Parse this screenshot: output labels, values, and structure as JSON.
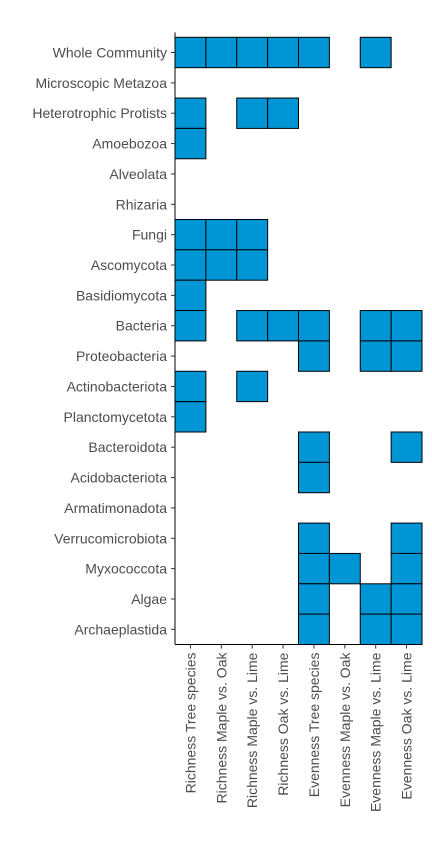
{
  "chart_data": {
    "type": "heatmap",
    "rows": [
      "Whole Community",
      "Microscopic Metazoa",
      "Heterotrophic Protists",
      "Amoebozoa",
      "Alveolata",
      "Rhizaria",
      "Fungi",
      "Ascomycota",
      "Basidiomycota",
      "Bacteria",
      "Proteobacteria",
      "Actinobacteriota",
      "Planctomycetota",
      "Bacteroidota",
      "Acidobacteriota",
      "Armatimonadota",
      "Verrucomicrobiota",
      "Myxococcota",
      "Algae",
      "Archaeplastida"
    ],
    "columns": [
      "Richness Tree species",
      "Richness Maple vs. Oak",
      "Richness Maple vs. Lime",
      "Richness Oak vs. Lime",
      "Evenness Tree species",
      "Evenness Maple vs. Oak",
      "Evenness Maple vs. Lime",
      "Evenness Oak vs. Lime"
    ],
    "cells": [
      [
        1,
        1,
        1,
        1,
        1,
        0,
        1,
        0
      ],
      [
        0,
        0,
        0,
        0,
        0,
        0,
        0,
        0
      ],
      [
        1,
        0,
        1,
        1,
        0,
        0,
        0,
        0
      ],
      [
        1,
        0,
        0,
        0,
        0,
        0,
        0,
        0
      ],
      [
        0,
        0,
        0,
        0,
        0,
        0,
        0,
        0
      ],
      [
        0,
        0,
        0,
        0,
        0,
        0,
        0,
        0
      ],
      [
        1,
        1,
        1,
        0,
        0,
        0,
        0,
        0
      ],
      [
        1,
        1,
        1,
        0,
        0,
        0,
        0,
        0
      ],
      [
        1,
        0,
        0,
        0,
        0,
        0,
        0,
        0
      ],
      [
        1,
        0,
        1,
        1,
        1,
        0,
        1,
        1
      ],
      [
        0,
        0,
        0,
        0,
        1,
        0,
        1,
        1
      ],
      [
        1,
        0,
        1,
        0,
        0,
        0,
        0,
        0
      ],
      [
        1,
        0,
        0,
        0,
        0,
        0,
        0,
        0
      ],
      [
        0,
        0,
        0,
        0,
        1,
        0,
        0,
        1
      ],
      [
        0,
        0,
        0,
        0,
        1,
        0,
        0,
        0
      ],
      [
        0,
        0,
        0,
        0,
        0,
        0,
        0,
        0
      ],
      [
        0,
        0,
        0,
        0,
        1,
        0,
        0,
        1
      ],
      [
        0,
        0,
        0,
        0,
        1,
        1,
        0,
        1
      ],
      [
        0,
        0,
        0,
        0,
        1,
        0,
        1,
        1
      ],
      [
        0,
        0,
        0,
        0,
        1,
        0,
        1,
        1
      ]
    ],
    "fill_color": "#0096d6",
    "grid": false
  }
}
